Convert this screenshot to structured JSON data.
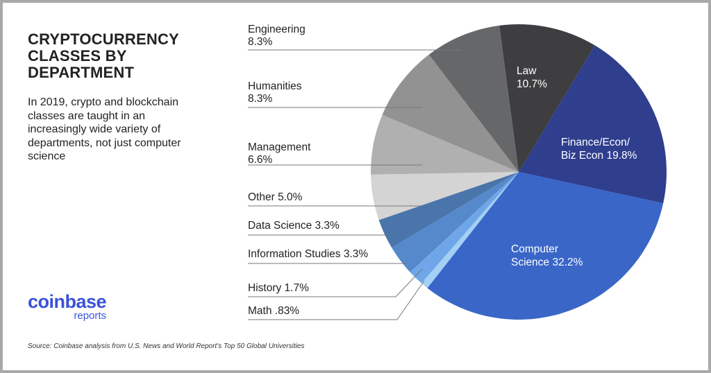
{
  "title": "CRYPTOCURRENCY\nCLASSES BY\nDEPARTMENT",
  "subtitle": "In 2019, crypto and blockchain classes are taught in an increasingly wide variety of departments, not just computer science",
  "logo": {
    "main": "coinbase",
    "sub": "reports",
    "color": "#3a52d8"
  },
  "source": "Source: Coinbase analysis from U.S. News and World Report's Top 50 Global Universities",
  "chart_data": {
    "type": "pie",
    "unit": "%",
    "slices": [
      {
        "name": "Finance/Econ/ Biz Econ",
        "value": 19.8,
        "label": "19.8%",
        "color": "#2f3f8e"
      },
      {
        "name": "Computer Science",
        "value": 32.2,
        "label": "32.2%",
        "color": "#3a66c8"
      },
      {
        "name": "Math",
        "value": 0.83,
        "label": ".83%",
        "color": "#a3d0f4"
      },
      {
        "name": "History",
        "value": 1.7,
        "label": "1.7%",
        "color": "#6fa6e9"
      },
      {
        "name": "Information Studies",
        "value": 3.3,
        "label": "3.3%",
        "color": "#5589cb"
      },
      {
        "name": "Data Science",
        "value": 3.3,
        "label": "3.3%",
        "color": "#4a75ab"
      },
      {
        "name": "Other",
        "value": 5.0,
        "label": "5.0%",
        "color": "#d4d4d4"
      },
      {
        "name": "Management",
        "value": 6.6,
        "label": "6.6%",
        "color": "#b0b0b0"
      },
      {
        "name": "Humanities",
        "value": 8.3,
        "label": "8.3%",
        "color": "#929292"
      },
      {
        "name": "Engineering",
        "value": 8.3,
        "label": "8.3%",
        "color": "#666768"
      },
      {
        "name": "Law",
        "value": 10.7,
        "label": "10.7%",
        "color": "#3e3e40"
      }
    ]
  }
}
